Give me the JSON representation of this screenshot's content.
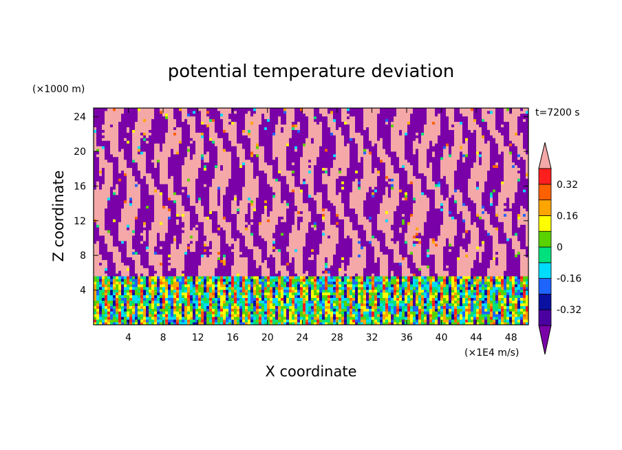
{
  "chart_data": {
    "type": "heatmap",
    "title": "potential temperature deviation",
    "xlabel": "X coordinate",
    "ylabel": "Z coordinate",
    "x_unit": "(×1E4 m/s)",
    "y_unit": "(×1000 m)",
    "time_label": "t=7200 s",
    "xlim": [
      0,
      50
    ],
    "ylim": [
      0,
      25
    ],
    "x_ticks": [
      4,
      8,
      12,
      16,
      20,
      24,
      28,
      32,
      36,
      40,
      44,
      48
    ],
    "y_ticks": [
      4,
      8,
      12,
      16,
      20,
      24
    ],
    "colorbar": {
      "levels": [
        -0.4,
        -0.32,
        -0.24,
        -0.16,
        -0.08,
        0,
        0.08,
        0.16,
        0.24,
        0.32,
        0.4
      ],
      "labels": [
        "0.32",
        "0.16",
        "0",
        "-0.16",
        "-0.32"
      ],
      "label_values": [
        0.32,
        0.16,
        0,
        -0.16,
        -0.32
      ],
      "colors": [
        "#7a00a8",
        "#4b00a0",
        "#0a10a0",
        "#1e64ff",
        "#00dcff",
        "#00e07c",
        "#5ad200",
        "#ffff00",
        "#ffa500",
        "#ff6000",
        "#ff1e1e",
        "#f5a8a8"
      ],
      "extend": "both"
    },
    "field_description": {
      "upper_region_z_range": [
        5.5,
        25
      ],
      "upper_region_colors": [
        "#7a00a8",
        "#f5a8a8"
      ],
      "lower_region_z_range": [
        0,
        5.5
      ],
      "lower_region_mixed": true
    }
  }
}
